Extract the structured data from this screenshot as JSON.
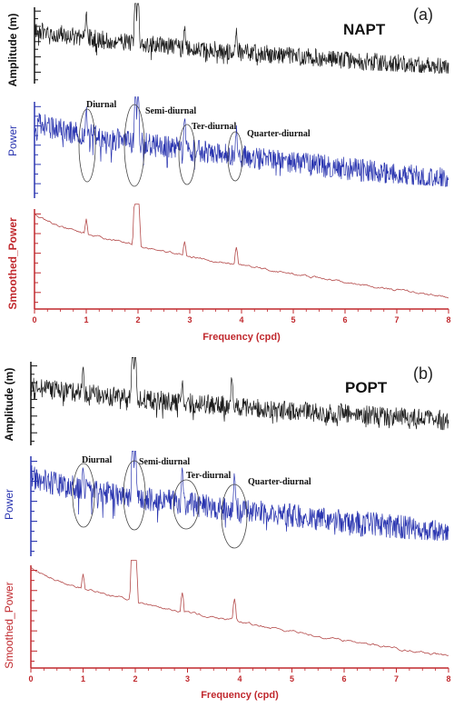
{
  "colors": {
    "amplitude": "#1a1a1a",
    "power": "#2a35b0",
    "smoothed": "#b44a4a",
    "axis_red": "#c0282d"
  },
  "chart_data": [
    {
      "type": "line",
      "panel_label": "(a)",
      "station": "NAPT",
      "xlabel": "Frequency (cpd)",
      "xlim": [
        0,
        8
      ],
      "x_ticks": [
        "0",
        "1",
        "2",
        "3",
        "4",
        "5",
        "6",
        "7",
        "8"
      ],
      "series": [
        {
          "name": "",
          "ylabel": "Amplitude (m)",
          "peaks": [
            [
              1.0,
              0.55
            ],
            [
              1.95,
              0.95
            ],
            [
              2.0,
              1.0
            ],
            [
              2.9,
              0.45
            ],
            [
              3.9,
              0.45
            ]
          ],
          "trend_start": 0.72,
          "trend_end": 0.22,
          "noise": 0.12
        },
        {
          "name": "",
          "ylabel": "Power",
          "peaks": [
            [
              1.0,
              0.55
            ],
            [
              1.95,
              0.85
            ],
            [
              2.0,
              0.9
            ],
            [
              2.9,
              0.55
            ],
            [
              3.9,
              0.45
            ]
          ],
          "trend_start": 0.8,
          "trend_end": 0.2,
          "noise": 0.12
        },
        {
          "name": "",
          "ylabel": "Smoothed_Power",
          "peaks": [
            [
              1.0,
              0.45
            ],
            [
              1.95,
              0.9
            ],
            [
              2.0,
              0.85
            ],
            [
              2.9,
              0.35
            ],
            [
              3.9,
              0.35
            ]
          ],
          "trend_start": 0.95,
          "trend_end": 0.1,
          "noise": 0.04
        }
      ],
      "annotations": [
        "Diurnal",
        "Semi-diurnal",
        "Ter-diurnal",
        "Quarter-diurnal"
      ]
    },
    {
      "type": "line",
      "panel_label": "(b)",
      "station": "POPT",
      "xlabel": "Frequency (cpd)",
      "xlim": [
        0,
        8
      ],
      "x_ticks": [
        "0",
        "1",
        "2",
        "3",
        "4",
        "5",
        "6",
        "7",
        "8"
      ],
      "series": [
        {
          "name": "",
          "ylabel": "Amplitude (m)",
          "peaks": [
            [
              1.0,
              0.55
            ],
            [
              1.95,
              1.0
            ],
            [
              2.0,
              0.9
            ],
            [
              2.9,
              0.45
            ],
            [
              3.85,
              0.55
            ]
          ],
          "trend_start": 0.72,
          "trend_end": 0.3,
          "noise": 0.12
        },
        {
          "name": "",
          "ylabel": "Power",
          "peaks": [
            [
              1.0,
              0.5
            ],
            [
              1.95,
              0.95
            ],
            [
              2.0,
              0.85
            ],
            [
              2.9,
              0.55
            ],
            [
              3.9,
              0.55
            ]
          ],
          "trend_start": 0.8,
          "trend_end": 0.25,
          "noise": 0.12
        },
        {
          "name": "",
          "ylabel": "Smoothed_Power",
          "peaks": [
            [
              1.0,
              0.45
            ],
            [
              1.95,
              0.95
            ],
            [
              2.0,
              0.9
            ],
            [
              2.9,
              0.4
            ],
            [
              3.9,
              0.4
            ]
          ],
          "trend_start": 0.98,
          "trend_end": 0.1,
          "noise": 0.04
        }
      ],
      "annotations": [
        "Diurnal",
        "Semi-diurnal",
        "Ter-diurnal",
        "Quarter-diurnal"
      ]
    }
  ]
}
